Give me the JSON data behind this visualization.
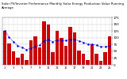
{
  "title": "Solar PV/Inverter Performance Monthly Solar Energy Production Value Running Average",
  "bar_values": [
    125,
    80,
    50,
    25,
    40,
    18,
    90,
    105,
    65,
    160,
    150,
    48,
    125,
    100,
    70,
    140,
    120,
    52,
    42,
    18,
    75,
    42,
    14,
    48,
    105
  ],
  "running_avg": [
    125,
    102,
    85,
    70,
    64,
    56,
    61,
    68,
    72,
    88,
    92,
    86,
    90,
    91,
    89,
    93,
    94,
    88,
    83,
    76,
    76,
    72,
    67,
    67,
    70
  ],
  "bar_color": "#cc0000",
  "line_color": "#0000dd",
  "bg_color": "#ffffff",
  "grid_color": "#aaaaaa",
  "ylim": [
    0,
    170
  ],
  "ytick_labels": [
    "175",
    "150",
    "125",
    "100",
    "75",
    "50",
    "25",
    "0"
  ],
  "ytick_vals": [
    175,
    150,
    125,
    100,
    75,
    50,
    25,
    0
  ],
  "figsize": [
    1.6,
    1.0
  ],
  "dpi": 100
}
